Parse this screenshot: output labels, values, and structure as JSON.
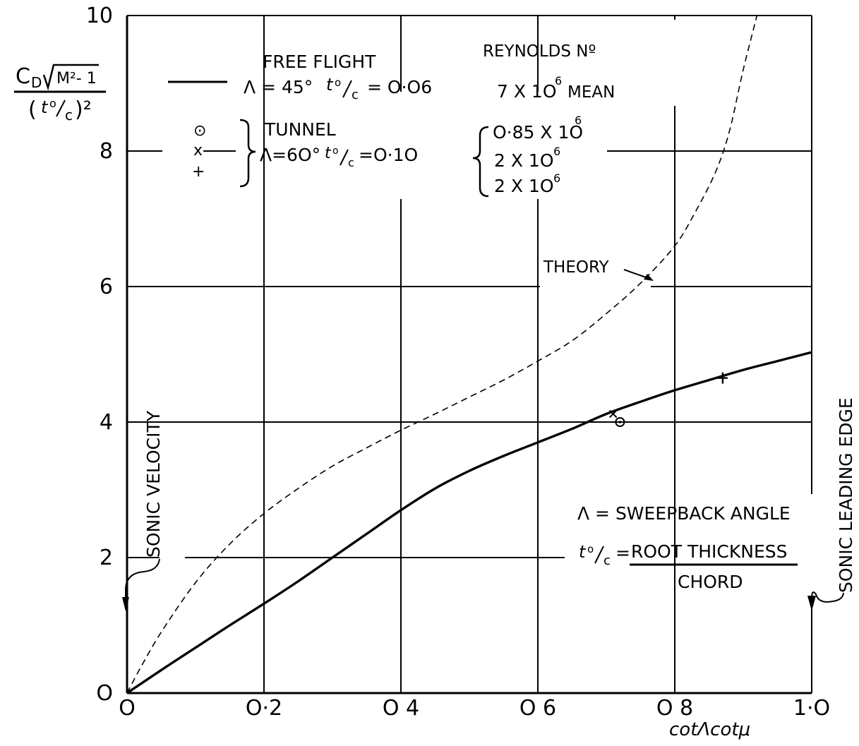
{
  "chart_data": {
    "type": "line",
    "xlabel": "cotΛcotμ",
    "ylabel_numerator": "C",
    "ylabel_numerator_sub": "D",
    "ylabel_numerator_root": "M²- 1",
    "ylabel_denominator_left": "(",
    "ylabel_denominator_t": "t",
    "ylabel_denominator_o": "o",
    "ylabel_denominator_c": "c",
    "ylabel_denominator_right": ")²",
    "xlim": [
      0,
      1.0
    ],
    "ylim": [
      0,
      10
    ],
    "xticks": [
      {
        "value": 0,
        "label": "O"
      },
      {
        "value": 0.2,
        "label": "O·2"
      },
      {
        "value": 0.4,
        "label": "O 4"
      },
      {
        "value": 0.6,
        "label": "O 6"
      },
      {
        "value": 0.8,
        "label": "O 8"
      },
      {
        "value": 1.0,
        "label": "1·O"
      }
    ],
    "yticks": [
      {
        "value": 0,
        "label": "O"
      },
      {
        "value": 2,
        "label": "2"
      },
      {
        "value": 4,
        "label": "4"
      },
      {
        "value": 6,
        "label": "6"
      },
      {
        "value": 8,
        "label": "8"
      },
      {
        "value": 10,
        "label": "10"
      }
    ],
    "grid": true,
    "series": [
      {
        "style": "solid",
        "x": [
          0,
          0.05,
          0.1,
          0.15,
          0.2,
          0.25,
          0.3,
          0.35,
          0.4,
          0.45,
          0.5,
          0.55,
          0.6,
          0.65,
          0.7,
          0.75,
          0.8,
          0.85,
          0.9,
          0.95,
          1.0
        ],
        "y": [
          0,
          0.34,
          0.67,
          1.0,
          1.32,
          1.65,
          2.0,
          2.35,
          2.7,
          3.02,
          3.28,
          3.5,
          3.7,
          3.9,
          4.12,
          4.3,
          4.47,
          4.62,
          4.77,
          4.9,
          5.03
        ]
      },
      {
        "style": "dashed",
        "x": [
          0,
          0.02,
          0.05,
          0.1,
          0.15,
          0.2,
          0.25,
          0.3,
          0.35,
          0.4,
          0.45,
          0.5,
          0.55,
          0.6,
          0.65,
          0.7,
          0.75,
          0.8,
          0.83,
          0.86,
          0.88,
          0.9,
          0.92
        ],
        "y": [
          0,
          0.38,
          0.9,
          1.63,
          2.2,
          2.65,
          3.02,
          3.35,
          3.62,
          3.88,
          4.12,
          4.37,
          4.62,
          4.9,
          5.2,
          5.6,
          6.05,
          6.6,
          7.1,
          7.7,
          8.3,
          9.2,
          10.0
        ]
      }
    ],
    "points": [
      {
        "marker": "circle-dot",
        "x": 0.72,
        "y": 4.0
      },
      {
        "marker": "cross",
        "x": 0.71,
        "y": 4.12
      },
      {
        "marker": "plus",
        "x": 0.87,
        "y": 4.65
      }
    ]
  },
  "legend": {
    "free_flight": "FREE FLIGHT",
    "free_flight_params": "Λ = 45°",
    "free_flight_t": "t",
    "free_flight_o": "o",
    "free_flight_c": "c",
    "free_flight_value": "= O·O6",
    "reynolds_title": "REYNOLDS Nº",
    "reynolds_free_flight": "7 X 1O",
    "reynolds_free_flight_exp": "6",
    "reynolds_free_flight_suffix": "MEAN",
    "tunnel": "TUNNEL",
    "tunnel_params": "Λ=6O°",
    "tunnel_t": "t",
    "tunnel_o": "o",
    "tunnel_c": "c",
    "tunnel_value": "=O·1O",
    "sym_circle": "⊙",
    "sym_cross": "x",
    "sym_plus": "+",
    "reynolds_1": "O·85 X 1O",
    "reynolds_1_exp": "6",
    "reynolds_2": "2 X 1O",
    "reynolds_2_exp": "6",
    "reynolds_3": "2 X 1O",
    "reynolds_3_exp": "6"
  },
  "annotations": {
    "theory": "THEORY",
    "sonic_velocity": "SONIC VELOCITY",
    "sonic_leading_edge": "SONIC LEADING EDGE",
    "sweepback": "Λ = SWEEPBACK ANGLE",
    "ratio_t": "t",
    "ratio_o": "o",
    "ratio_c": "c",
    "ratio_eq": "=",
    "root_thickness": "ROOT THICKNESS",
    "chord": "CHORD"
  }
}
